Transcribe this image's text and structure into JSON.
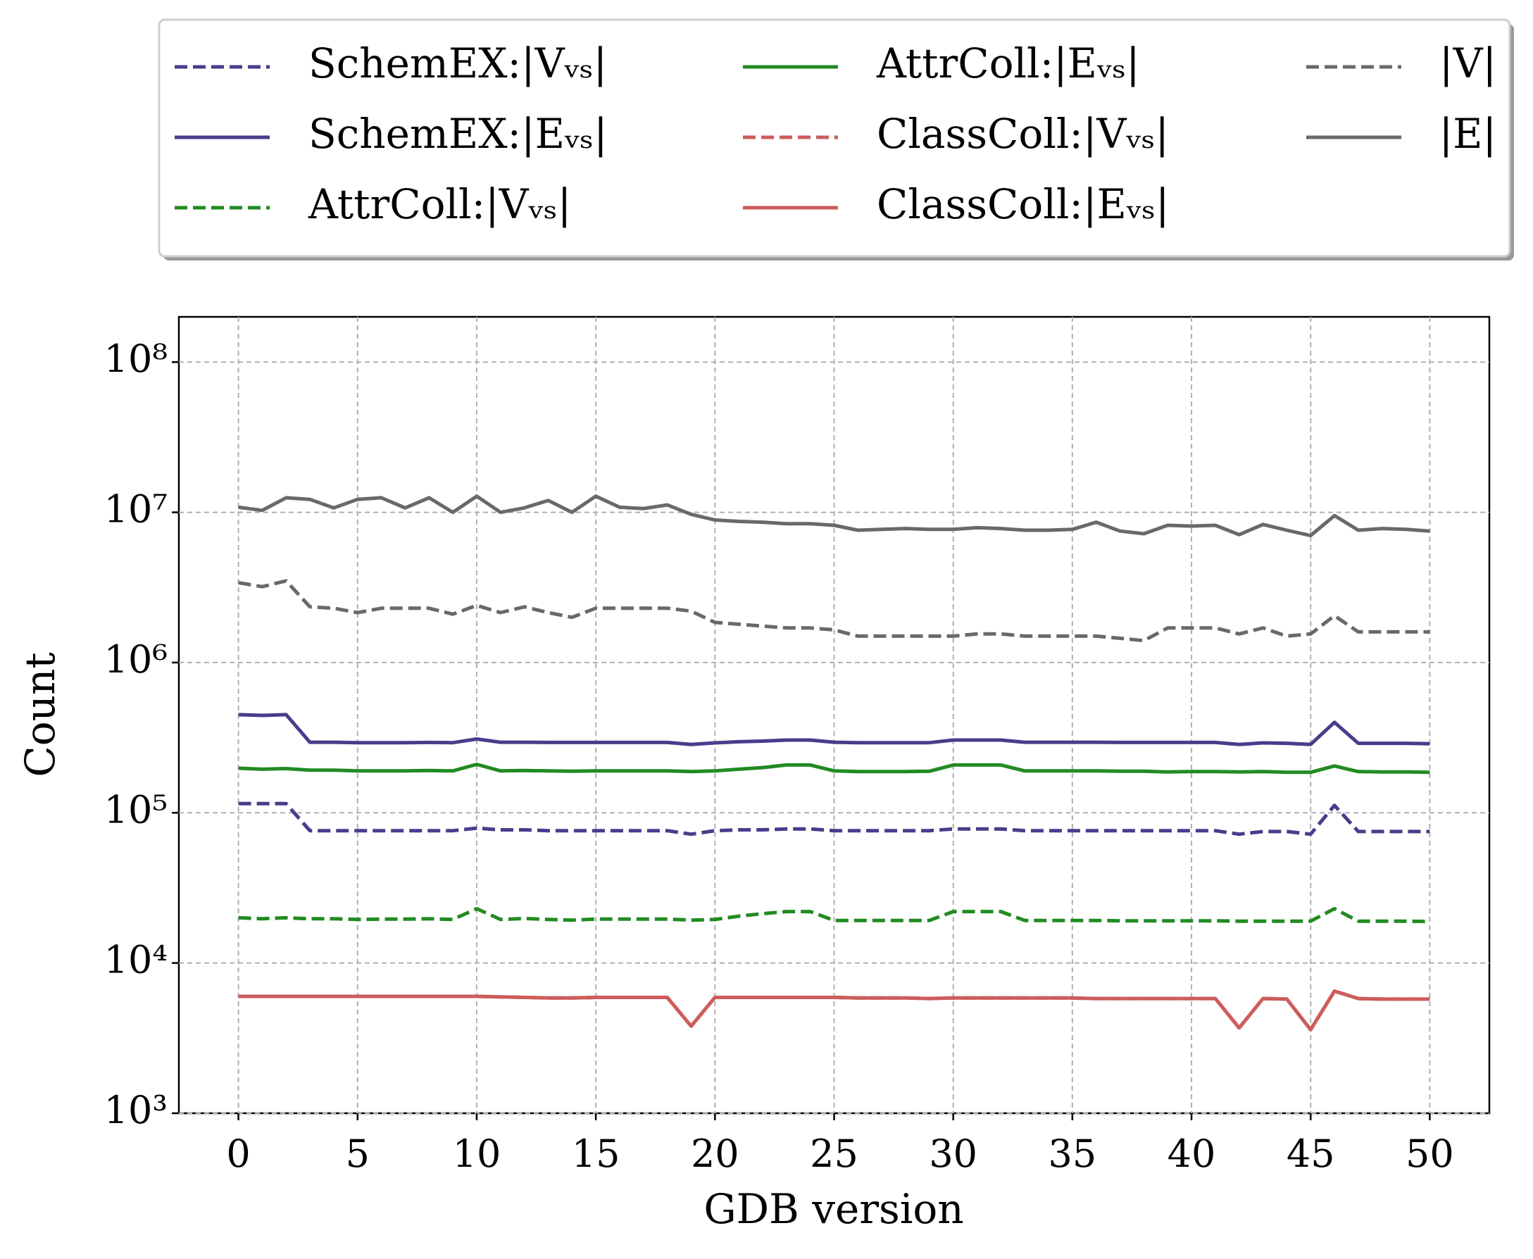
{
  "chart_data": {
    "type": "line",
    "x_label": "GDB version",
    "y_label": "Count",
    "x": [
      0,
      1,
      2,
      3,
      4,
      5,
      6,
      7,
      8,
      9,
      10,
      11,
      12,
      13,
      14,
      15,
      16,
      17,
      18,
      19,
      20,
      21,
      22,
      23,
      24,
      25,
      26,
      27,
      28,
      29,
      30,
      31,
      32,
      33,
      34,
      35,
      36,
      37,
      38,
      39,
      40,
      41,
      42,
      43,
      44,
      45,
      46,
      47,
      48,
      49,
      50
    ],
    "xlim": [
      -2.5,
      52.5
    ],
    "xticks": [
      0,
      5,
      10,
      15,
      20,
      25,
      30,
      35,
      40,
      45,
      50
    ],
    "ylim": [
      1000,
      200000000
    ],
    "log_y": true,
    "grid": true,
    "legend": "upper center",
    "yticks": [
      {
        "value": 1000,
        "label": "10³"
      },
      {
        "value": 10000,
        "label": "10⁴"
      },
      {
        "value": 100000,
        "label": "10⁵"
      },
      {
        "value": 1000000,
        "label": "10⁶"
      },
      {
        "value": 10000000,
        "label": "10⁷"
      },
      {
        "value": 100000000,
        "label": "10⁸"
      }
    ],
    "series": [
      {
        "name": "SchemEX:|Vᵥₛ|",
        "color": "#483d8b",
        "dashed": true,
        "values": [
          115000,
          115000,
          115000,
          76000,
          76000,
          76000,
          76000,
          76000,
          76000,
          76000,
          79000,
          77000,
          77000,
          76000,
          76000,
          76000,
          76000,
          76000,
          76000,
          72000,
          76000,
          77000,
          77000,
          78000,
          78000,
          76000,
          76000,
          76000,
          76000,
          76000,
          78000,
          78000,
          78000,
          76000,
          76000,
          76000,
          76000,
          76000,
          76000,
          76000,
          76000,
          76000,
          72000,
          75000,
          75000,
          72000,
          112000,
          75000,
          75000,
          75000,
          75000
        ]
      },
      {
        "name": "SchemEX:|Eᵥₛ|",
        "color": "#483d8b",
        "dashed": false,
        "values": [
          450000,
          445000,
          450000,
          295000,
          295000,
          293000,
          293000,
          293000,
          294000,
          293000,
          310000,
          295000,
          295000,
          294000,
          294000,
          294000,
          294000,
          294000,
          294000,
          285000,
          292000,
          297000,
          300000,
          305000,
          305000,
          295000,
          293000,
          293000,
          293000,
          293000,
          305000,
          305000,
          305000,
          295000,
          295000,
          295000,
          295000,
          294000,
          294000,
          294000,
          294000,
          294000,
          285000,
          292000,
          290000,
          285000,
          400000,
          290000,
          290000,
          290000,
          288000
        ]
      },
      {
        "name": "AttrColl:|Vᵥₛ|",
        "color": "#228b22",
        "dashed": true,
        "values": [
          20000,
          19700,
          20000,
          19700,
          19700,
          19500,
          19600,
          19600,
          19700,
          19500,
          23000,
          19500,
          19800,
          19500,
          19300,
          19600,
          19600,
          19600,
          19600,
          19300,
          19500,
          20500,
          21300,
          22000,
          22000,
          19200,
          19200,
          19200,
          19200,
          19200,
          22000,
          22000,
          22000,
          19200,
          19200,
          19200,
          19200,
          19100,
          19100,
          19100,
          19100,
          19100,
          19000,
          19000,
          19000,
          19000,
          23000,
          19000,
          19000,
          19000,
          18900
        ]
      },
      {
        "name": "AttrColl:|Eᵥₛ|",
        "color": "#228b22",
        "dashed": false,
        "values": [
          198000,
          195000,
          197000,
          192000,
          192000,
          190000,
          190000,
          190000,
          191000,
          190000,
          210000,
          190000,
          191000,
          190000,
          189000,
          190000,
          190000,
          190000,
          190000,
          188000,
          190000,
          195000,
          200000,
          208000,
          208000,
          190000,
          188000,
          188000,
          188000,
          189000,
          208000,
          208000,
          208000,
          190000,
          190000,
          190000,
          190000,
          189000,
          189000,
          187000,
          188000,
          188000,
          187000,
          188000,
          186000,
          186000,
          205000,
          188000,
          187000,
          187000,
          186000
        ]
      },
      {
        "name": "ClassColl:|Vᵥₛ|",
        "color": "#cd5c5c",
        "dashed": true,
        "values": [
          6000,
          6000,
          6000,
          6000,
          6000,
          6000,
          6000,
          6000,
          6000,
          6000,
          6000,
          5950,
          5900,
          5850,
          5850,
          5900,
          5900,
          5900,
          5900,
          3800,
          5900,
          5900,
          5900,
          5900,
          5900,
          5900,
          5850,
          5850,
          5850,
          5800,
          5850,
          5850,
          5850,
          5850,
          5850,
          5850,
          5800,
          5800,
          5800,
          5800,
          5800,
          5800,
          3700,
          5800,
          5750,
          3600,
          6500,
          5800,
          5750,
          5750,
          5750
        ]
      },
      {
        "name": "ClassColl:|Eᵥₛ|",
        "color": "#cd5c5c",
        "dashed": false,
        "values": [
          6000,
          6000,
          6000,
          6000,
          6000,
          6000,
          6000,
          6000,
          6000,
          6000,
          6000,
          5950,
          5900,
          5850,
          5850,
          5900,
          5900,
          5900,
          5900,
          3800,
          5900,
          5900,
          5900,
          5900,
          5900,
          5900,
          5850,
          5850,
          5850,
          5800,
          5850,
          5850,
          5850,
          5850,
          5850,
          5850,
          5800,
          5800,
          5800,
          5800,
          5800,
          5800,
          3700,
          5800,
          5750,
          3600,
          6500,
          5800,
          5750,
          5750,
          5750
        ]
      },
      {
        "name": "|V|",
        "color": "#696969",
        "dashed": true,
        "values": [
          3400000,
          3200000,
          3500000,
          2350000,
          2300000,
          2150000,
          2300000,
          2300000,
          2300000,
          2100000,
          2400000,
          2150000,
          2350000,
          2150000,
          2000000,
          2300000,
          2300000,
          2300000,
          2300000,
          2200000,
          1850000,
          1800000,
          1750000,
          1700000,
          1700000,
          1650000,
          1500000,
          1500000,
          1500000,
          1500000,
          1500000,
          1550000,
          1550000,
          1500000,
          1500000,
          1500000,
          1500000,
          1450000,
          1400000,
          1700000,
          1700000,
          1700000,
          1550000,
          1700000,
          1500000,
          1550000,
          2050000,
          1600000,
          1600000,
          1600000,
          1600000
        ]
      },
      {
        "name": "|E|",
        "color": "#696969",
        "dashed": false,
        "values": [
          10800000,
          10300000,
          12500000,
          12200000,
          10700000,
          12200000,
          12500000,
          10700000,
          12500000,
          10000000,
          12800000,
          10000000,
          10700000,
          12000000,
          10000000,
          12800000,
          10800000,
          10600000,
          11200000,
          9700000,
          8900000,
          8700000,
          8600000,
          8400000,
          8400000,
          8200000,
          7600000,
          7700000,
          7800000,
          7700000,
          7700000,
          7900000,
          7800000,
          7600000,
          7600000,
          7700000,
          8600000,
          7500000,
          7200000,
          8200000,
          8100000,
          8200000,
          7100000,
          8300000,
          7600000,
          7000000,
          9500000,
          7600000,
          7800000,
          7700000,
          7500000
        ]
      }
    ]
  }
}
